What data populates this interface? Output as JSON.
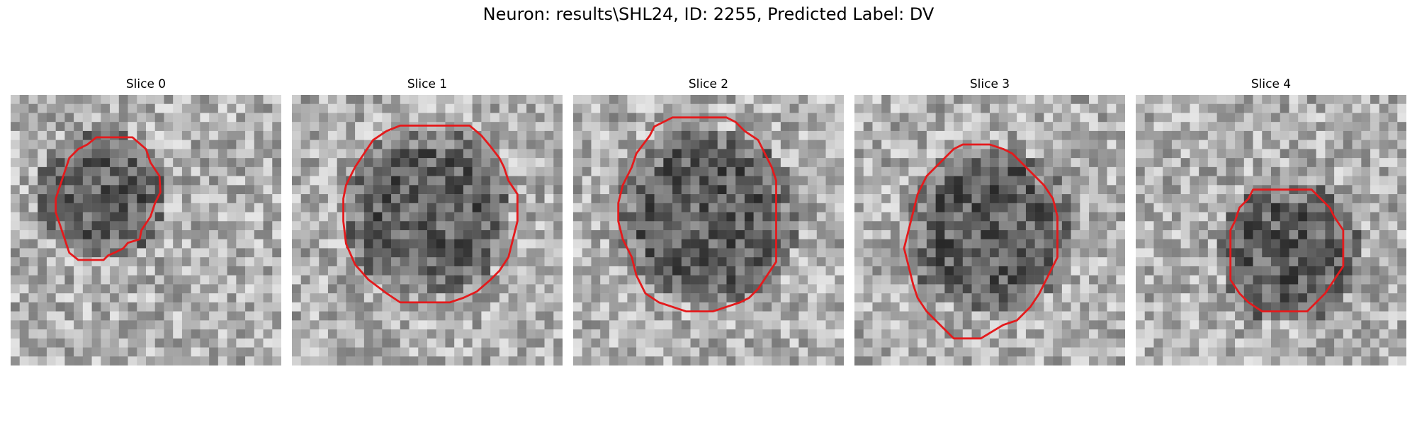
{
  "figure": {
    "title": "Neuron: results\\SHL24, ID: 2255, Predicted Label: DV"
  },
  "slices": [
    {
      "title": "Slice 0",
      "roi": "small irregular octagon left of center"
    },
    {
      "title": "Slice 1",
      "roi": "large octagon"
    },
    {
      "title": "Slice 2",
      "roi": "large octagon"
    },
    {
      "title": "Slice 3",
      "roi": "large octagon, lower"
    },
    {
      "title": "Slice 4",
      "roi": "small octagon"
    }
  ],
  "colors": {
    "roi_outline": "#e41a1c",
    "background": "#ffffff"
  }
}
